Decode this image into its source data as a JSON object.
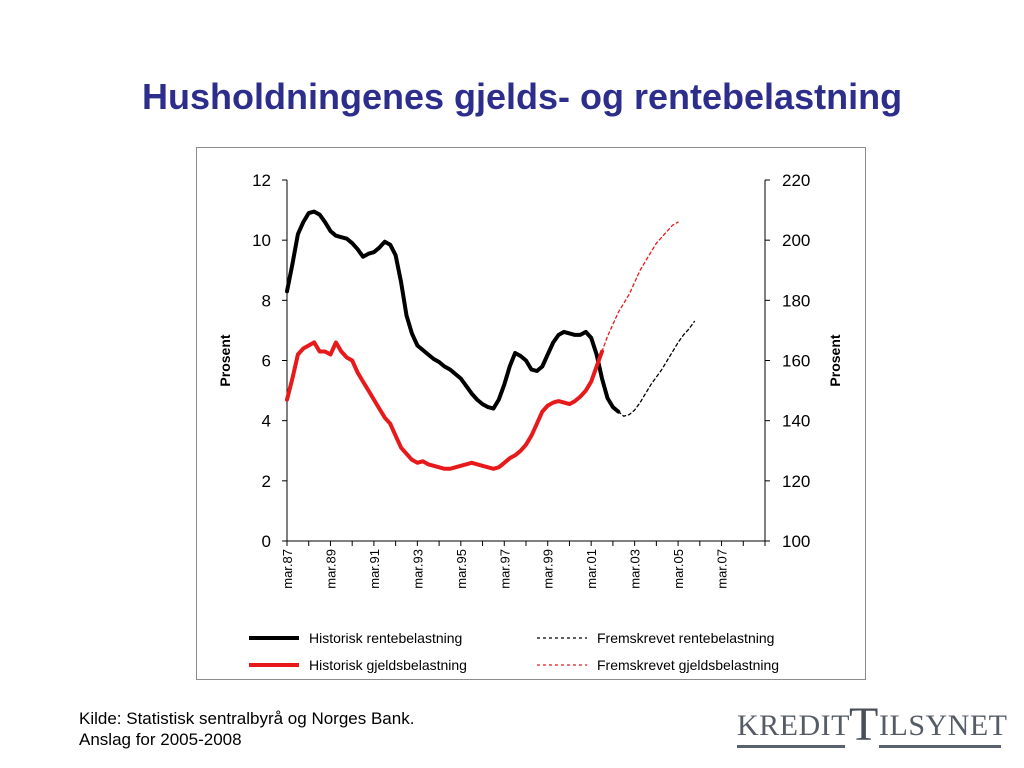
{
  "slide": {
    "title": "Husholdningenes gjelds- og rentebelastning"
  },
  "source": {
    "line1": "Kilde: Statistisk sentralbyrå og Norges Bank.",
    "line2": "Anslag for 2005-2008"
  },
  "logo": {
    "left_word": "KREDIT",
    "big_letter": "T",
    "right_word": "ILSYNET"
  },
  "chart_data": {
    "type": "line",
    "title": "",
    "y_left": {
      "label": "Prosent",
      "min": 0,
      "max": 12,
      "ticks": [
        0,
        2,
        4,
        6,
        8,
        10,
        12
      ]
    },
    "y_right": {
      "label": "Prosent",
      "min": 100,
      "max": 220,
      "ticks": [
        100,
        120,
        140,
        160,
        180,
        200,
        220
      ]
    },
    "x": {
      "start": 1987.25,
      "end": 2009.25,
      "tick_labels": [
        "mar.87",
        "mar.89",
        "mar.91",
        "mar.93",
        "mar.95",
        "mar.97",
        "mar.99",
        "mar.01",
        "mar.03",
        "mar.05",
        "mar.07"
      ],
      "tick_years": [
        1987.25,
        1989.25,
        1991.25,
        1993.25,
        1995.25,
        1997.25,
        1999.25,
        2001.25,
        2003.25,
        2005.25,
        2007.25
      ]
    },
    "legend_position": "bottom",
    "series": [
      {
        "name": "Historisk rentebelastning",
        "axis": "left",
        "color": "#000000",
        "style": "solid",
        "points": [
          [
            1987.25,
            8.3
          ],
          [
            1987.5,
            9.2
          ],
          [
            1987.75,
            10.2
          ],
          [
            1988.0,
            10.6
          ],
          [
            1988.25,
            10.9
          ],
          [
            1988.5,
            10.95
          ],
          [
            1988.75,
            10.85
          ],
          [
            1989.0,
            10.6
          ],
          [
            1989.25,
            10.3
          ],
          [
            1989.5,
            10.15
          ],
          [
            1989.75,
            10.1
          ],
          [
            1990.0,
            10.05
          ],
          [
            1990.25,
            9.9
          ],
          [
            1990.5,
            9.7
          ],
          [
            1990.75,
            9.45
          ],
          [
            1991.0,
            9.55
          ],
          [
            1991.25,
            9.6
          ],
          [
            1991.5,
            9.75
          ],
          [
            1991.75,
            9.95
          ],
          [
            1992.0,
            9.85
          ],
          [
            1992.25,
            9.5
          ],
          [
            1992.5,
            8.6
          ],
          [
            1992.75,
            7.5
          ],
          [
            1993.0,
            6.9
          ],
          [
            1993.25,
            6.5
          ],
          [
            1993.5,
            6.35
          ],
          [
            1993.75,
            6.2
          ],
          [
            1994.0,
            6.05
          ],
          [
            1994.25,
            5.95
          ],
          [
            1994.5,
            5.8
          ],
          [
            1994.75,
            5.7
          ],
          [
            1995.0,
            5.55
          ],
          [
            1995.25,
            5.4
          ],
          [
            1995.5,
            5.15
          ],
          [
            1995.75,
            4.9
          ],
          [
            1996.0,
            4.7
          ],
          [
            1996.25,
            4.55
          ],
          [
            1996.5,
            4.45
          ],
          [
            1996.75,
            4.4
          ],
          [
            1997.0,
            4.7
          ],
          [
            1997.25,
            5.2
          ],
          [
            1997.5,
            5.8
          ],
          [
            1997.75,
            6.25
          ],
          [
            1998.0,
            6.15
          ],
          [
            1998.25,
            6.0
          ],
          [
            1998.5,
            5.7
          ],
          [
            1998.75,
            5.65
          ],
          [
            1999.0,
            5.8
          ],
          [
            1999.25,
            6.2
          ],
          [
            1999.5,
            6.6
          ],
          [
            1999.75,
            6.85
          ],
          [
            2000.0,
            6.95
          ],
          [
            2000.25,
            6.9
          ],
          [
            2000.5,
            6.85
          ],
          [
            2000.75,
            6.85
          ],
          [
            2001.0,
            6.95
          ],
          [
            2001.25,
            6.75
          ],
          [
            2001.5,
            6.2
          ],
          [
            2001.75,
            5.4
          ],
          [
            2002.0,
            4.75
          ],
          [
            2002.25,
            4.45
          ],
          [
            2002.5,
            4.3
          ]
        ]
      },
      {
        "name": "Historisk gjeldsbelastning",
        "axis": "right",
        "color": "#e8191a",
        "style": "solid",
        "points": [
          [
            1987.25,
            147
          ],
          [
            1987.5,
            154
          ],
          [
            1987.75,
            162
          ],
          [
            1988.0,
            164
          ],
          [
            1988.25,
            165
          ],
          [
            1988.5,
            166
          ],
          [
            1988.75,
            163
          ],
          [
            1989.0,
            163
          ],
          [
            1989.25,
            162
          ],
          [
            1989.5,
            166
          ],
          [
            1989.75,
            163
          ],
          [
            1990.0,
            161
          ],
          [
            1990.25,
            160
          ],
          [
            1990.5,
            156
          ],
          [
            1990.75,
            153
          ],
          [
            1991.0,
            150
          ],
          [
            1991.25,
            147
          ],
          [
            1991.5,
            144
          ],
          [
            1991.75,
            141
          ],
          [
            1992.0,
            139
          ],
          [
            1992.25,
            135
          ],
          [
            1992.5,
            131
          ],
          [
            1992.75,
            129
          ],
          [
            1993.0,
            127
          ],
          [
            1993.25,
            126
          ],
          [
            1993.5,
            126.5
          ],
          [
            1993.75,
            125.5
          ],
          [
            1994.0,
            125
          ],
          [
            1994.25,
            124.5
          ],
          [
            1994.5,
            124
          ],
          [
            1994.75,
            124
          ],
          [
            1995.0,
            124.5
          ],
          [
            1995.25,
            125
          ],
          [
            1995.5,
            125.5
          ],
          [
            1995.75,
            126
          ],
          [
            1996.0,
            125.5
          ],
          [
            1996.25,
            125
          ],
          [
            1996.5,
            124.5
          ],
          [
            1996.75,
            124
          ],
          [
            1997.0,
            124.5
          ],
          [
            1997.25,
            126
          ],
          [
            1997.5,
            127.5
          ],
          [
            1997.75,
            128.5
          ],
          [
            1998.0,
            130
          ],
          [
            1998.25,
            132
          ],
          [
            1998.5,
            135
          ],
          [
            1998.75,
            139
          ],
          [
            1999.0,
            143
          ],
          [
            1999.25,
            145
          ],
          [
            1999.5,
            146
          ],
          [
            1999.75,
            146.5
          ],
          [
            2000.0,
            146
          ],
          [
            2000.25,
            145.5
          ],
          [
            2000.5,
            146.5
          ],
          [
            2000.75,
            148
          ],
          [
            2001.0,
            150
          ],
          [
            2001.25,
            153
          ],
          [
            2001.5,
            158
          ],
          [
            2001.75,
            163
          ]
        ]
      },
      {
        "name": "Fremskrevet rentebelastning",
        "axis": "left",
        "color": "#000000",
        "style": "dotted",
        "points": [
          [
            2002.5,
            4.3
          ],
          [
            2002.75,
            4.15
          ],
          [
            2003.0,
            4.2
          ],
          [
            2003.25,
            4.35
          ],
          [
            2003.5,
            4.6
          ],
          [
            2003.75,
            4.9
          ],
          [
            2004.0,
            5.2
          ],
          [
            2004.25,
            5.45
          ],
          [
            2004.5,
            5.7
          ],
          [
            2004.75,
            6.0
          ],
          [
            2005.0,
            6.3
          ],
          [
            2005.25,
            6.6
          ],
          [
            2005.5,
            6.85
          ],
          [
            2005.75,
            7.05
          ],
          [
            2006.0,
            7.3
          ]
        ]
      },
      {
        "name": "Fremskrevet gjeldsbelastning",
        "axis": "right",
        "color": "#e8191a",
        "style": "dotted",
        "points": [
          [
            2001.75,
            163
          ],
          [
            2002.0,
            168
          ],
          [
            2002.25,
            172
          ],
          [
            2002.5,
            176
          ],
          [
            2002.75,
            179
          ],
          [
            2003.0,
            182
          ],
          [
            2003.25,
            186
          ],
          [
            2003.5,
            190
          ],
          [
            2003.75,
            193
          ],
          [
            2004.0,
            196
          ],
          [
            2004.25,
            199
          ],
          [
            2004.5,
            201
          ],
          [
            2004.75,
            203
          ],
          [
            2005.0,
            205
          ],
          [
            2005.25,
            206
          ]
        ]
      }
    ]
  }
}
